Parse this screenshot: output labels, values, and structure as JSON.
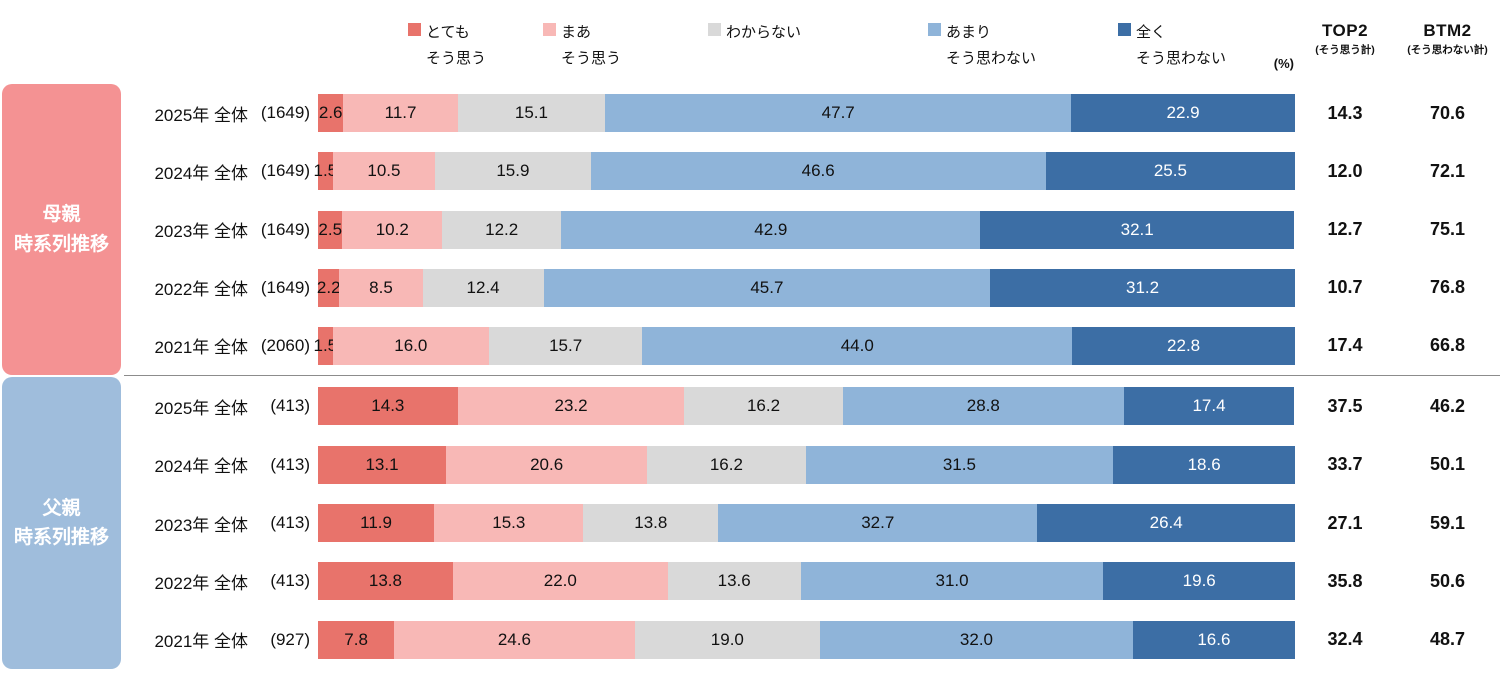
{
  "legend": {
    "unit_label": "(%)",
    "items": [
      {
        "line1": "とても",
        "line2": "そう思う",
        "color": "#E8736B"
      },
      {
        "line1": "まあ",
        "line2": "そう思う",
        "color": "#F8B8B6"
      },
      {
        "line1": "わからない",
        "line2": "",
        "color": "#D9D9D9"
      },
      {
        "line1": "あまり",
        "line2": "そう思わない",
        "color": "#8FB4D9"
      },
      {
        "line1": "全く",
        "line2": "そう思わない",
        "color": "#3C6EA5"
      }
    ]
  },
  "summary_columns": {
    "top2_title": "TOP2",
    "top2_subtitle": "(そう思う計)",
    "btm2_title": "BTM2",
    "btm2_subtitle": "(そう思わない計)"
  },
  "chart_data": {
    "type": "bar",
    "orientation": "horizontal",
    "stacked": true,
    "unit": "%",
    "x_range": [
      0,
      100
    ],
    "series_names": [
      "とても そう思う",
      "まあ そう思う",
      "わからない",
      "あまり そう思わない",
      "全く そう思わない"
    ],
    "series_colors": [
      "#E8736B",
      "#F8B8B6",
      "#D9D9D9",
      "#8FB4D9",
      "#3C6EA5"
    ],
    "groups": [
      {
        "label_line1": "母親",
        "label_line2": "時系列推移",
        "block_color": "#F49293",
        "rows": [
          {
            "year": "2025年 全体",
            "n": "(1649)",
            "values": [
              2.6,
              11.7,
              15.1,
              47.7,
              22.9
            ],
            "top2": 14.3,
            "btm2": 70.6
          },
          {
            "year": "2024年 全体",
            "n": "(1649)",
            "values": [
              1.5,
              10.5,
              15.9,
              46.6,
              25.5
            ],
            "top2": 12.0,
            "btm2": 72.1
          },
          {
            "year": "2023年 全体",
            "n": "(1649)",
            "values": [
              2.5,
              10.2,
              12.2,
              42.9,
              32.1
            ],
            "top2": 12.7,
            "btm2": 75.1
          },
          {
            "year": "2022年 全体",
            "n": "(1649)",
            "values": [
              2.2,
              8.5,
              12.4,
              45.7,
              31.2
            ],
            "top2": 10.7,
            "btm2": 76.8
          },
          {
            "year": "2021年 全体",
            "n": "(2060)",
            "values": [
              1.5,
              16.0,
              15.7,
              44.0,
              22.8
            ],
            "top2": 17.4,
            "btm2": 66.8
          }
        ]
      },
      {
        "label_line1": "父親",
        "label_line2": "時系列推移",
        "block_color": "#9FBDDC",
        "rows": [
          {
            "year": "2025年 全体",
            "n": "(413)",
            "values": [
              14.3,
              23.2,
              16.2,
              28.8,
              17.4
            ],
            "top2": 37.5,
            "btm2": 46.2
          },
          {
            "year": "2024年 全体",
            "n": "(413)",
            "values": [
              13.1,
              20.6,
              16.2,
              31.5,
              18.6
            ],
            "top2": 33.7,
            "btm2": 50.1
          },
          {
            "year": "2023年 全体",
            "n": "(413)",
            "values": [
              11.9,
              15.3,
              13.8,
              32.7,
              26.4
            ],
            "top2": 27.1,
            "btm2": 59.1
          },
          {
            "year": "2022年 全体",
            "n": "(413)",
            "values": [
              13.8,
              22.0,
              13.6,
              31.0,
              19.6
            ],
            "top2": 35.8,
            "btm2": 50.6
          },
          {
            "year": "2021年 全体",
            "n": "(927)",
            "values": [
              7.8,
              24.6,
              19.0,
              32.0,
              16.6
            ],
            "top2": 32.4,
            "btm2": 48.7
          }
        ]
      }
    ]
  }
}
